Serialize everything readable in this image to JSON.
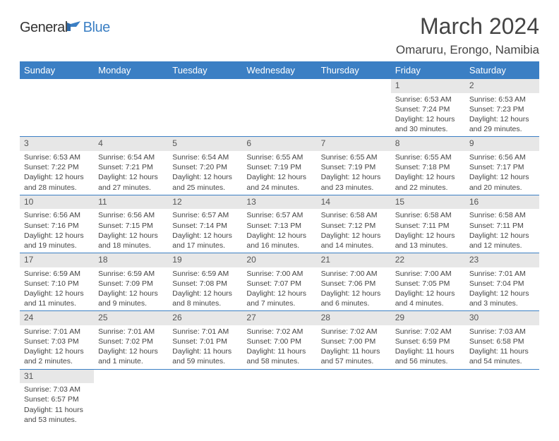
{
  "brand": {
    "part1": "General",
    "part2": "Blue"
  },
  "title": "March 2024",
  "location": "Omaruru, Erongo, Namibia",
  "colors": {
    "header_bg": "#3b7fc4",
    "header_text": "#ffffff",
    "daynum_bg": "#e7e7e7",
    "rule": "#3b7fc4",
    "text": "#444444",
    "logo_blue": "#3b7fc4"
  },
  "weekdays": [
    "Sunday",
    "Monday",
    "Tuesday",
    "Wednesday",
    "Thursday",
    "Friday",
    "Saturday"
  ],
  "weeks": [
    [
      null,
      null,
      null,
      null,
      null,
      {
        "n": "1",
        "sr": "Sunrise: 6:53 AM",
        "ss": "Sunset: 7:24 PM",
        "d1": "Daylight: 12 hours",
        "d2": "and 30 minutes."
      },
      {
        "n": "2",
        "sr": "Sunrise: 6:53 AM",
        "ss": "Sunset: 7:23 PM",
        "d1": "Daylight: 12 hours",
        "d2": "and 29 minutes."
      }
    ],
    [
      {
        "n": "3",
        "sr": "Sunrise: 6:53 AM",
        "ss": "Sunset: 7:22 PM",
        "d1": "Daylight: 12 hours",
        "d2": "and 28 minutes."
      },
      {
        "n": "4",
        "sr": "Sunrise: 6:54 AM",
        "ss": "Sunset: 7:21 PM",
        "d1": "Daylight: 12 hours",
        "d2": "and 27 minutes."
      },
      {
        "n": "5",
        "sr": "Sunrise: 6:54 AM",
        "ss": "Sunset: 7:20 PM",
        "d1": "Daylight: 12 hours",
        "d2": "and 25 minutes."
      },
      {
        "n": "6",
        "sr": "Sunrise: 6:55 AM",
        "ss": "Sunset: 7:19 PM",
        "d1": "Daylight: 12 hours",
        "d2": "and 24 minutes."
      },
      {
        "n": "7",
        "sr": "Sunrise: 6:55 AM",
        "ss": "Sunset: 7:19 PM",
        "d1": "Daylight: 12 hours",
        "d2": "and 23 minutes."
      },
      {
        "n": "8",
        "sr": "Sunrise: 6:55 AM",
        "ss": "Sunset: 7:18 PM",
        "d1": "Daylight: 12 hours",
        "d2": "and 22 minutes."
      },
      {
        "n": "9",
        "sr": "Sunrise: 6:56 AM",
        "ss": "Sunset: 7:17 PM",
        "d1": "Daylight: 12 hours",
        "d2": "and 20 minutes."
      }
    ],
    [
      {
        "n": "10",
        "sr": "Sunrise: 6:56 AM",
        "ss": "Sunset: 7:16 PM",
        "d1": "Daylight: 12 hours",
        "d2": "and 19 minutes."
      },
      {
        "n": "11",
        "sr": "Sunrise: 6:56 AM",
        "ss": "Sunset: 7:15 PM",
        "d1": "Daylight: 12 hours",
        "d2": "and 18 minutes."
      },
      {
        "n": "12",
        "sr": "Sunrise: 6:57 AM",
        "ss": "Sunset: 7:14 PM",
        "d1": "Daylight: 12 hours",
        "d2": "and 17 minutes."
      },
      {
        "n": "13",
        "sr": "Sunrise: 6:57 AM",
        "ss": "Sunset: 7:13 PM",
        "d1": "Daylight: 12 hours",
        "d2": "and 16 minutes."
      },
      {
        "n": "14",
        "sr": "Sunrise: 6:58 AM",
        "ss": "Sunset: 7:12 PM",
        "d1": "Daylight: 12 hours",
        "d2": "and 14 minutes."
      },
      {
        "n": "15",
        "sr": "Sunrise: 6:58 AM",
        "ss": "Sunset: 7:11 PM",
        "d1": "Daylight: 12 hours",
        "d2": "and 13 minutes."
      },
      {
        "n": "16",
        "sr": "Sunrise: 6:58 AM",
        "ss": "Sunset: 7:11 PM",
        "d1": "Daylight: 12 hours",
        "d2": "and 12 minutes."
      }
    ],
    [
      {
        "n": "17",
        "sr": "Sunrise: 6:59 AM",
        "ss": "Sunset: 7:10 PM",
        "d1": "Daylight: 12 hours",
        "d2": "and 11 minutes."
      },
      {
        "n": "18",
        "sr": "Sunrise: 6:59 AM",
        "ss": "Sunset: 7:09 PM",
        "d1": "Daylight: 12 hours",
        "d2": "and 9 minutes."
      },
      {
        "n": "19",
        "sr": "Sunrise: 6:59 AM",
        "ss": "Sunset: 7:08 PM",
        "d1": "Daylight: 12 hours",
        "d2": "and 8 minutes."
      },
      {
        "n": "20",
        "sr": "Sunrise: 7:00 AM",
        "ss": "Sunset: 7:07 PM",
        "d1": "Daylight: 12 hours",
        "d2": "and 7 minutes."
      },
      {
        "n": "21",
        "sr": "Sunrise: 7:00 AM",
        "ss": "Sunset: 7:06 PM",
        "d1": "Daylight: 12 hours",
        "d2": "and 6 minutes."
      },
      {
        "n": "22",
        "sr": "Sunrise: 7:00 AM",
        "ss": "Sunset: 7:05 PM",
        "d1": "Daylight: 12 hours",
        "d2": "and 4 minutes."
      },
      {
        "n": "23",
        "sr": "Sunrise: 7:01 AM",
        "ss": "Sunset: 7:04 PM",
        "d1": "Daylight: 12 hours",
        "d2": "and 3 minutes."
      }
    ],
    [
      {
        "n": "24",
        "sr": "Sunrise: 7:01 AM",
        "ss": "Sunset: 7:03 PM",
        "d1": "Daylight: 12 hours",
        "d2": "and 2 minutes."
      },
      {
        "n": "25",
        "sr": "Sunrise: 7:01 AM",
        "ss": "Sunset: 7:02 PM",
        "d1": "Daylight: 12 hours",
        "d2": "and 1 minute."
      },
      {
        "n": "26",
        "sr": "Sunrise: 7:01 AM",
        "ss": "Sunset: 7:01 PM",
        "d1": "Daylight: 11 hours",
        "d2": "and 59 minutes."
      },
      {
        "n": "27",
        "sr": "Sunrise: 7:02 AM",
        "ss": "Sunset: 7:00 PM",
        "d1": "Daylight: 11 hours",
        "d2": "and 58 minutes."
      },
      {
        "n": "28",
        "sr": "Sunrise: 7:02 AM",
        "ss": "Sunset: 7:00 PM",
        "d1": "Daylight: 11 hours",
        "d2": "and 57 minutes."
      },
      {
        "n": "29",
        "sr": "Sunrise: 7:02 AM",
        "ss": "Sunset: 6:59 PM",
        "d1": "Daylight: 11 hours",
        "d2": "and 56 minutes."
      },
      {
        "n": "30",
        "sr": "Sunrise: 7:03 AM",
        "ss": "Sunset: 6:58 PM",
        "d1": "Daylight: 11 hours",
        "d2": "and 54 minutes."
      }
    ],
    [
      {
        "n": "31",
        "sr": "Sunrise: 7:03 AM",
        "ss": "Sunset: 6:57 PM",
        "d1": "Daylight: 11 hours",
        "d2": "and 53 minutes."
      },
      null,
      null,
      null,
      null,
      null,
      null
    ]
  ]
}
